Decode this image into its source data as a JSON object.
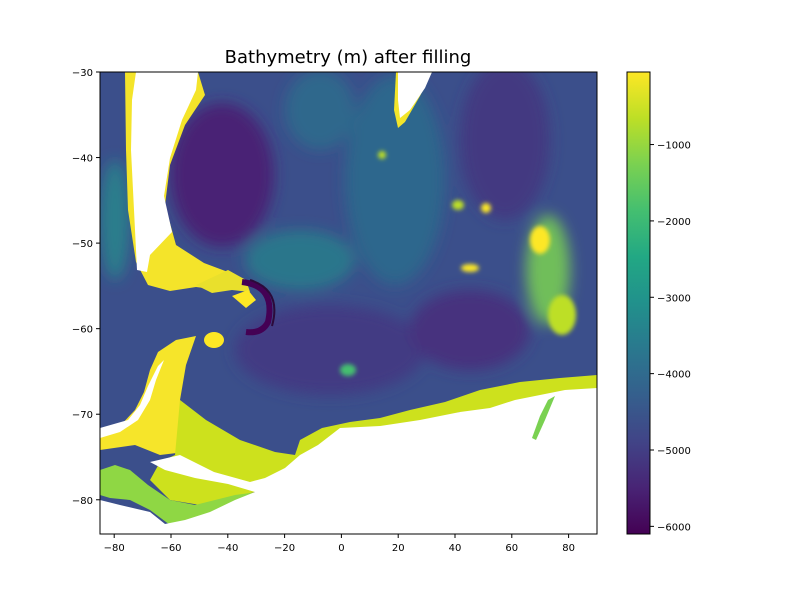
{
  "chart_data": {
    "type": "heatmap",
    "title": "Bathymetry (m) after filling",
    "xlabel": "",
    "ylabel": "",
    "xlim": [
      -85,
      90
    ],
    "ylim": [
      -84,
      -30
    ],
    "x_ticks": [
      "−80",
      "−60",
      "−40",
      "−20",
      "0",
      "20",
      "40",
      "60",
      "80"
    ],
    "x_tick_values": [
      -80,
      -60,
      -40,
      -20,
      0,
      20,
      40,
      60,
      80
    ],
    "y_ticks": [
      "−30",
      "−40",
      "−50",
      "−60",
      "−70",
      "−80"
    ],
    "y_tick_values": [
      -30,
      -40,
      -50,
      -60,
      -70,
      -80
    ],
    "colorbar": {
      "colormap": "viridis",
      "range": [
        -6100,
        -50
      ],
      "ticks": [
        "−1000",
        "−2000",
        "−3000",
        "−4000",
        "−5000",
        "−6000"
      ],
      "tick_values": [
        -1000,
        -2000,
        -3000,
        -4000,
        -5000,
        -6000
      ]
    },
    "grid": false,
    "land_color": "#ffffff",
    "colors": {
      "deep": "#440154",
      "abyssal": "#3b528b",
      "mid": "#21918c",
      "shelf": "#5ec962",
      "shallow": "#fde725"
    }
  }
}
